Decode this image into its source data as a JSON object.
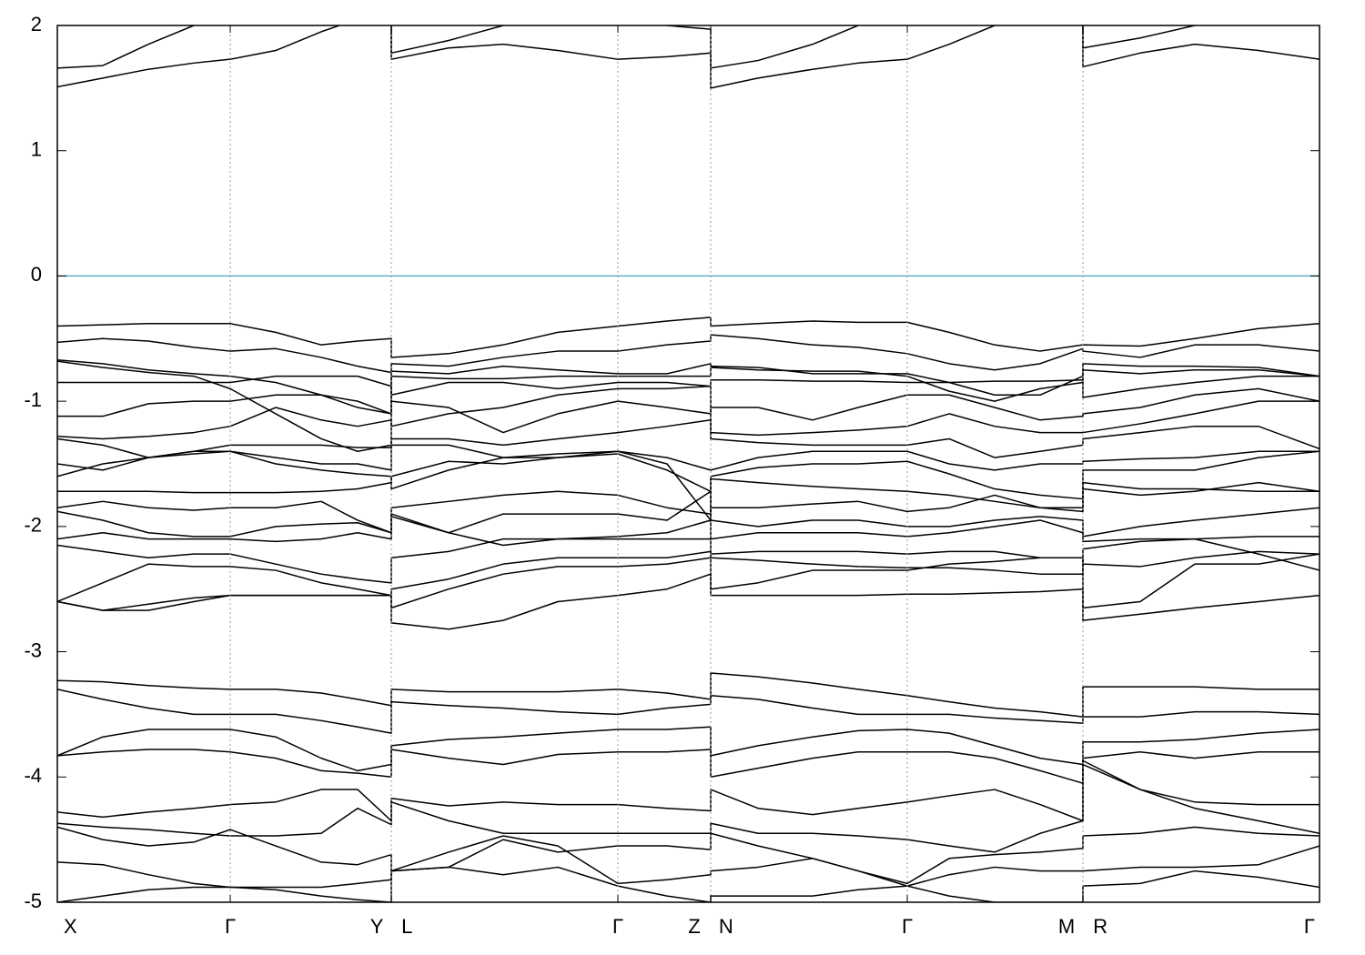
{
  "chart_data": {
    "type": "line",
    "xlim": [
      0,
      13.87
    ],
    "ylim": [
      -5,
      2
    ],
    "yticks": [
      2,
      1,
      0,
      -1,
      -2,
      -3,
      -4,
      -5
    ],
    "xticks": [
      {
        "value": 0,
        "label": "X"
      },
      {
        "value": 1.9,
        "label": "Γ"
      },
      {
        "value": 3.67,
        "label": "Y L"
      },
      {
        "value": 6.16,
        "label": "Γ"
      },
      {
        "value": 7.18,
        "label": "Z N"
      },
      {
        "value": 9.34,
        "label": "Γ"
      },
      {
        "value": 11.27,
        "label": "M R"
      },
      {
        "value": 13.87,
        "label": "Γ"
      }
    ],
    "grid": "x",
    "color": "#000000",
    "reference_line": {
      "value": 0,
      "color": "#5aafc8"
    },
    "x": [
      0,
      0.5,
      1.0,
      1.5,
      1.9,
      2.4,
      2.9,
      3.3,
      3.67,
      3.67,
      4.3,
      4.9,
      5.5,
      6.16,
      6.7,
      7.18,
      7.18,
      7.7,
      8.3,
      8.8,
      9.34,
      9.8,
      10.3,
      10.8,
      11.27,
      11.27,
      11.9,
      12.5,
      13.2,
      13.87
    ],
    "series": [
      {
        "values": [
          1.51,
          1.58,
          1.65,
          1.7,
          1.73,
          1.8,
          1.95,
          2.05,
          2.1,
          1.73,
          1.82,
          1.85,
          1.8,
          1.73,
          1.75,
          1.78,
          1.5,
          1.58,
          1.65,
          1.7,
          1.73,
          1.85,
          2.0,
          2.1,
          2.15,
          1.67,
          1.78,
          1.85,
          1.8,
          1.73
        ]
      },
      {
        "values": [
          1.66,
          1.68,
          1.85,
          2.0,
          2.1,
          2.2,
          2.3,
          2.3,
          2.3,
          1.78,
          1.88,
          2.0,
          2.05,
          2.1,
          2.0,
          1.97,
          1.66,
          1.72,
          1.85,
          2.0,
          2.1,
          2.2,
          2.3,
          2.3,
          2.3,
          1.82,
          1.9,
          2.0,
          2.1,
          2.2
        ]
      },
      {
        "values": [
          -0.4,
          -0.39,
          -0.38,
          -0.38,
          -0.38,
          -0.45,
          -0.55,
          -0.52,
          -0.5,
          -0.65,
          -0.62,
          -0.55,
          -0.45,
          -0.4,
          -0.36,
          -0.33,
          -0.4,
          -0.38,
          -0.36,
          -0.37,
          -0.37,
          -0.45,
          -0.55,
          -0.6,
          -0.55,
          -0.55,
          -0.56,
          -0.5,
          -0.42,
          -0.38
        ]
      },
      {
        "values": [
          -0.53,
          -0.5,
          -0.52,
          -0.57,
          -0.6,
          -0.58,
          -0.65,
          -0.72,
          -0.77,
          -0.7,
          -0.72,
          -0.65,
          -0.6,
          -0.6,
          -0.55,
          -0.52,
          -0.47,
          -0.5,
          -0.55,
          -0.57,
          -0.62,
          -0.7,
          -0.75,
          -0.7,
          -0.58,
          -0.6,
          -0.65,
          -0.55,
          -0.55,
          -0.6
        ]
      },
      {
        "values": [
          -0.67,
          -0.7,
          -0.75,
          -0.78,
          -0.8,
          -0.85,
          -0.95,
          -1.05,
          -1.1,
          -0.76,
          -0.78,
          -0.72,
          -0.75,
          -0.78,
          -0.78,
          -0.7,
          -0.72,
          -0.73,
          -0.78,
          -0.78,
          -0.78,
          -0.85,
          -0.95,
          -0.95,
          -0.8,
          -0.7,
          -0.72,
          -0.72,
          -0.73,
          -0.8
        ]
      },
      {
        "values": [
          -0.68,
          -0.73,
          -0.77,
          -0.8,
          -0.9,
          -1.1,
          -1.3,
          -1.4,
          -1.35,
          -0.8,
          -0.82,
          -0.82,
          -0.8,
          -0.8,
          -0.8,
          -0.8,
          -0.73,
          -0.75,
          -0.76,
          -0.76,
          -0.8,
          -0.92,
          -1.0,
          -0.9,
          -0.85,
          -0.75,
          -0.78,
          -0.75,
          -0.75,
          -0.8
        ]
      },
      {
        "values": [
          -0.85,
          -0.85,
          -0.85,
          -0.85,
          -0.85,
          -0.8,
          -0.8,
          -0.8,
          -0.88,
          -0.95,
          -0.85,
          -0.85,
          -0.9,
          -0.85,
          -0.85,
          -0.88,
          -0.83,
          -0.83,
          -0.84,
          -0.84,
          -0.85,
          -0.85,
          -0.84,
          -0.84,
          -0.83,
          -0.97,
          -0.9,
          -0.85,
          -0.8,
          -0.8
        ]
      },
      {
        "values": [
          -1.12,
          -1.12,
          -1.02,
          -1.0,
          -1.0,
          -0.95,
          -0.95,
          -1.0,
          -1.1,
          -1.0,
          -1.05,
          -1.25,
          -1.1,
          -1.0,
          -1.05,
          -1.1,
          -1.05,
          -1.05,
          -1.15,
          -1.05,
          -0.95,
          -0.95,
          -1.05,
          -1.15,
          -1.12,
          -1.1,
          -1.05,
          -0.95,
          -0.9,
          -1.0
        ]
      },
      {
        "values": [
          -1.28,
          -1.3,
          -1.28,
          -1.25,
          -1.2,
          -1.05,
          -1.15,
          -1.2,
          -1.15,
          -1.2,
          -1.1,
          -1.05,
          -0.95,
          -0.9,
          -0.9,
          -0.88,
          -1.25,
          -1.27,
          -1.25,
          -1.23,
          -1.2,
          -1.1,
          -1.2,
          -1.25,
          -1.25,
          -1.25,
          -1.18,
          -1.1,
          -1.0,
          -1.0
        ]
      },
      {
        "values": [
          -1.3,
          -1.35,
          -1.45,
          -1.4,
          -1.35,
          -1.35,
          -1.35,
          -1.37,
          -1.37,
          -1.3,
          -1.3,
          -1.35,
          -1.3,
          -1.25,
          -1.2,
          -1.15,
          -1.3,
          -1.33,
          -1.35,
          -1.35,
          -1.35,
          -1.3,
          -1.45,
          -1.4,
          -1.35,
          -1.3,
          -1.25,
          -1.2,
          -1.2,
          -1.38
        ]
      },
      {
        "values": [
          -1.5,
          -1.55,
          -1.45,
          -1.4,
          -1.4,
          -1.45,
          -1.5,
          -1.5,
          -1.55,
          -1.35,
          -1.35,
          -1.45,
          -1.45,
          -1.4,
          -1.45,
          -1.55,
          -1.55,
          -1.45,
          -1.4,
          -1.4,
          -1.4,
          -1.5,
          -1.55,
          -1.5,
          -1.5,
          -1.48,
          -1.46,
          -1.45,
          -1.4,
          -1.4
        ]
      },
      {
        "values": [
          -1.6,
          -1.5,
          -1.45,
          -1.42,
          -1.4,
          -1.5,
          -1.55,
          -1.58,
          -1.6,
          -1.7,
          -1.55,
          -1.45,
          -1.42,
          -1.4,
          -1.5,
          -1.95,
          -1.62,
          -1.65,
          -1.68,
          -1.7,
          -1.72,
          -1.75,
          -1.8,
          -1.85,
          -1.88,
          -1.55,
          -1.55,
          -1.55,
          -1.45,
          -1.4
        ]
      },
      {
        "values": [
          -1.72,
          -1.72,
          -1.72,
          -1.73,
          -1.73,
          -1.73,
          -1.72,
          -1.7,
          -1.65,
          -1.6,
          -1.48,
          -1.5,
          -1.45,
          -1.42,
          -1.55,
          -1.72,
          -1.6,
          -1.53,
          -1.5,
          -1.5,
          -1.48,
          -1.58,
          -1.7,
          -1.75,
          -1.78,
          -1.65,
          -1.7,
          -1.7,
          -1.72,
          -1.72
        ]
      },
      {
        "values": [
          -1.85,
          -1.8,
          -1.85,
          -1.87,
          -1.85,
          -1.85,
          -1.8,
          -1.95,
          -2.05,
          -1.85,
          -1.8,
          -1.75,
          -1.72,
          -1.75,
          -1.85,
          -1.9,
          -1.85,
          -1.85,
          -1.82,
          -1.8,
          -1.88,
          -1.85,
          -1.75,
          -1.85,
          -1.85,
          -1.7,
          -1.75,
          -1.72,
          -1.65,
          -1.72
        ]
      },
      {
        "values": [
          -1.88,
          -1.95,
          -2.05,
          -2.08,
          -2.08,
          -2.0,
          -1.98,
          -1.97,
          -2.05,
          -1.9,
          -2.05,
          -1.9,
          -1.9,
          -1.9,
          -1.95,
          -1.72,
          -1.95,
          -2.0,
          -1.95,
          -1.95,
          -2.0,
          -2.0,
          -1.95,
          -1.92,
          -1.95,
          -2.08,
          -2.0,
          -1.95,
          -1.9,
          -1.85
        ]
      },
      {
        "values": [
          -2.1,
          -2.05,
          -2.1,
          -2.1,
          -2.1,
          -2.12,
          -2.1,
          -2.05,
          -2.1,
          -1.92,
          -2.05,
          -2.15,
          -2.1,
          -2.08,
          -2.05,
          -1.95,
          -2.1,
          -2.05,
          -2.05,
          -2.05,
          -2.08,
          -2.05,
          -2.0,
          -1.95,
          -2.05,
          -2.12,
          -2.1,
          -2.1,
          -2.08,
          -2.08
        ]
      },
      {
        "values": [
          -2.15,
          -2.2,
          -2.25,
          -2.22,
          -2.22,
          -2.3,
          -2.38,
          -2.42,
          -2.45,
          -2.25,
          -2.2,
          -2.1,
          -2.1,
          -2.1,
          -2.1,
          -2.1,
          -2.22,
          -2.2,
          -2.2,
          -2.2,
          -2.22,
          -2.2,
          -2.2,
          -2.25,
          -2.25,
          -2.3,
          -2.32,
          -2.25,
          -2.2,
          -2.22
        ]
      },
      {
        "values": [
          -2.6,
          -2.45,
          -2.3,
          -2.32,
          -2.32,
          -2.35,
          -2.45,
          -2.5,
          -2.55,
          -2.5,
          -2.42,
          -2.3,
          -2.25,
          -2.25,
          -2.25,
          -2.2,
          -2.25,
          -2.27,
          -2.3,
          -2.32,
          -2.33,
          -2.33,
          -2.35,
          -2.38,
          -2.38,
          -2.18,
          -2.12,
          -2.1,
          -2.22,
          -2.35
        ]
      },
      {
        "values": [
          -2.6,
          -2.67,
          -2.62,
          -2.57,
          -2.55,
          -2.55,
          -2.55,
          -2.55,
          -2.55,
          -2.65,
          -2.5,
          -2.38,
          -2.32,
          -2.32,
          -2.3,
          -2.25,
          -2.5,
          -2.45,
          -2.35,
          -2.35,
          -2.35,
          -2.3,
          -2.28,
          -2.25,
          -2.25,
          -2.65,
          -2.6,
          -2.3,
          -2.3,
          -2.22
        ]
      },
      {
        "values": [
          -2.6,
          -2.67,
          -2.67,
          -2.6,
          -2.55,
          -2.55,
          -2.55,
          -2.55,
          -2.55,
          -2.77,
          -2.82,
          -2.75,
          -2.6,
          -2.55,
          -2.5,
          -2.38,
          -2.55,
          -2.55,
          -2.55,
          -2.55,
          -2.54,
          -2.54,
          -2.53,
          -2.52,
          -2.5,
          -2.75,
          -2.7,
          -2.65,
          -2.6,
          -2.55
        ]
      },
      {
        "values": [
          -3.23,
          -3.24,
          -3.27,
          -3.29,
          -3.3,
          -3.3,
          -3.33,
          -3.38,
          -3.43,
          -3.3,
          -3.32,
          -3.32,
          -3.32,
          -3.3,
          -3.33,
          -3.38,
          -3.17,
          -3.2,
          -3.25,
          -3.3,
          -3.35,
          -3.4,
          -3.45,
          -3.48,
          -3.52,
          -3.28,
          -3.28,
          -3.28,
          -3.3,
          -3.3
        ]
      },
      {
        "values": [
          -3.3,
          -3.38,
          -3.45,
          -3.5,
          -3.5,
          -3.5,
          -3.55,
          -3.6,
          -3.65,
          -3.4,
          -3.43,
          -3.45,
          -3.48,
          -3.5,
          -3.45,
          -3.42,
          -3.35,
          -3.38,
          -3.45,
          -3.5,
          -3.5,
          -3.5,
          -3.53,
          -3.55,
          -3.57,
          -3.52,
          -3.52,
          -3.48,
          -3.48,
          -3.5
        ]
      },
      {
        "values": [
          -3.83,
          -3.68,
          -3.62,
          -3.62,
          -3.62,
          -3.68,
          -3.85,
          -3.95,
          -3.9,
          -3.75,
          -3.7,
          -3.68,
          -3.65,
          -3.62,
          -3.62,
          -3.6,
          -3.83,
          -3.75,
          -3.68,
          -3.63,
          -3.62,
          -3.65,
          -3.75,
          -3.85,
          -3.9,
          -3.72,
          -3.72,
          -3.7,
          -3.65,
          -3.62
        ]
      },
      {
        "values": [
          -3.83,
          -3.8,
          -3.78,
          -3.78,
          -3.8,
          -3.85,
          -3.95,
          -3.97,
          -4.0,
          -3.78,
          -3.85,
          -3.9,
          -3.82,
          -3.8,
          -3.8,
          -3.78,
          -4.0,
          -3.93,
          -3.85,
          -3.8,
          -3.8,
          -3.8,
          -3.85,
          -3.95,
          -4.05,
          -3.85,
          -3.8,
          -3.85,
          -3.8,
          -3.8
        ]
      },
      {
        "values": [
          -4.28,
          -4.32,
          -4.28,
          -4.25,
          -4.22,
          -4.2,
          -4.1,
          -4.1,
          -4.35,
          -4.17,
          -4.23,
          -4.2,
          -4.22,
          -4.22,
          -4.25,
          -4.27,
          -4.1,
          -4.25,
          -4.3,
          -4.25,
          -4.2,
          -4.15,
          -4.1,
          -4.22,
          -4.35,
          -3.9,
          -4.1,
          -4.2,
          -4.22,
          -4.22
        ]
      },
      {
        "values": [
          -4.37,
          -4.4,
          -4.42,
          -4.45,
          -4.47,
          -4.47,
          -4.45,
          -4.25,
          -4.38,
          -4.2,
          -4.35,
          -4.45,
          -4.45,
          -4.45,
          -4.45,
          -4.45,
          -4.37,
          -4.45,
          -4.45,
          -4.47,
          -4.5,
          -4.55,
          -4.6,
          -4.45,
          -4.35,
          -3.87,
          -4.1,
          -4.25,
          -4.35,
          -4.45
        ]
      },
      {
        "values": [
          -4.4,
          -4.5,
          -4.55,
          -4.52,
          -4.42,
          -4.55,
          -4.68,
          -4.7,
          -4.62,
          -4.75,
          -4.72,
          -4.5,
          -4.6,
          -4.55,
          -4.55,
          -4.58,
          -4.45,
          -4.55,
          -4.65,
          -4.75,
          -4.85,
          -4.65,
          -4.62,
          -4.6,
          -4.57,
          -4.47,
          -4.45,
          -4.4,
          -4.45,
          -4.47
        ]
      },
      {
        "values": [
          -4.68,
          -4.7,
          -4.78,
          -4.85,
          -4.88,
          -4.88,
          -4.88,
          -4.85,
          -4.82,
          -4.75,
          -4.6,
          -4.47,
          -4.55,
          -4.85,
          -4.82,
          -4.78,
          -4.75,
          -4.72,
          -4.65,
          -4.75,
          -4.87,
          -4.78,
          -4.72,
          -4.75,
          -4.75,
          -4.75,
          -4.72,
          -4.72,
          -4.7,
          -4.55
        ]
      },
      {
        "values": [
          -5.0,
          -4.95,
          -4.9,
          -4.88,
          -4.88,
          -4.9,
          -4.95,
          -4.98,
          -5.0,
          -4.75,
          -4.72,
          -4.78,
          -4.72,
          -4.87,
          -4.95,
          -5.0,
          -4.95,
          -4.95,
          -4.95,
          -4.9,
          -4.87,
          -4.95,
          -5.0,
          -5.0,
          -5.0,
          -4.87,
          -4.85,
          -4.75,
          -4.8,
          -4.88
        ]
      }
    ]
  }
}
